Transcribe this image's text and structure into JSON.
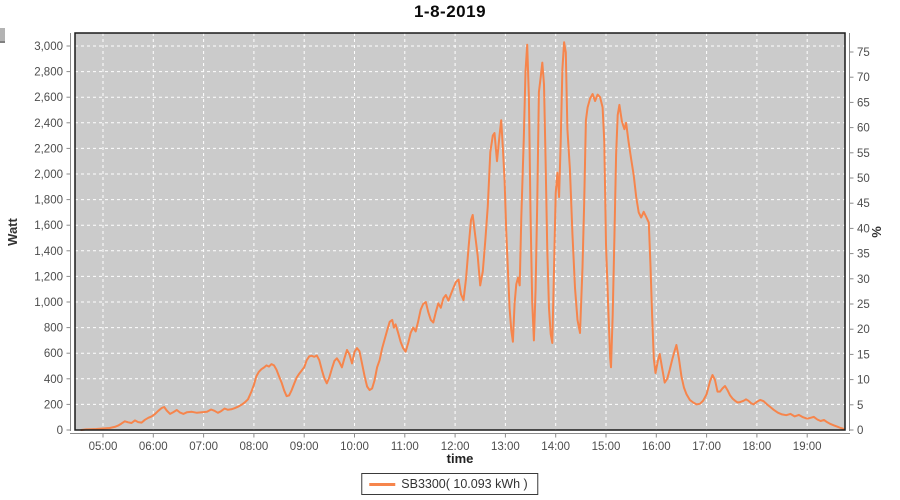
{
  "title": "1-8-2019",
  "legend": {
    "series_label": "SB3300( 10.093 kWh )"
  },
  "colors": {
    "line": "#F6854C",
    "plot_bg": "#CBCBCB",
    "grid": "#FFFFFF",
    "plot_border": "#1B1B1B",
    "axis_line": "#8A8A8A",
    "tick_label": "#4D4D4D",
    "axis_title": "#333333"
  },
  "chart_data": {
    "type": "line",
    "title": "1-8-2019",
    "xlabel": "time",
    "ylabel_left": "Watt",
    "ylabel_right": "%",
    "grid": true,
    "legend_position": "bottom-center",
    "x_ticks": [
      "05:00",
      "06:00",
      "07:00",
      "08:00",
      "09:00",
      "10:00",
      "11:00",
      "12:00",
      "13:00",
      "14:00",
      "15:00",
      "16:00",
      "17:00",
      "18:00",
      "19:00"
    ],
    "y_left": {
      "min": 0,
      "max": 3000,
      "step": 200
    },
    "y_left_ticks": [
      "0",
      "200",
      "400",
      "600",
      "800",
      "1,000",
      "1,200",
      "1,400",
      "1,600",
      "1,800",
      "2,000",
      "2,200",
      "2,400",
      "2,600",
      "2,800",
      "3,000"
    ],
    "y_right": {
      "min": 0,
      "max": 75,
      "step": 5
    },
    "y_right_ticks": [
      "0",
      "5",
      "10",
      "15",
      "20",
      "25",
      "30",
      "35",
      "40",
      "45",
      "50",
      "55",
      "60",
      "65",
      "70",
      "75"
    ],
    "series": [
      {
        "name": "SB3300",
        "energy_label": "10.093 kWh",
        "color": "#F6854C",
        "points": [
          [
            "04:34",
            0
          ],
          [
            "04:40",
            5
          ],
          [
            "04:46",
            6
          ],
          [
            "04:52",
            8
          ],
          [
            "05:00",
            12
          ],
          [
            "05:08",
            16
          ],
          [
            "05:14",
            24
          ],
          [
            "05:18",
            34
          ],
          [
            "05:22",
            50
          ],
          [
            "05:26",
            68
          ],
          [
            "05:30",
            60
          ],
          [
            "05:34",
            55
          ],
          [
            "05:38",
            75
          ],
          [
            "05:42",
            62
          ],
          [
            "05:46",
            58
          ],
          [
            "05:50",
            80
          ],
          [
            "05:54",
            95
          ],
          [
            "05:58",
            106
          ],
          [
            "06:02",
            125
          ],
          [
            "06:06",
            150
          ],
          [
            "06:10",
            172
          ],
          [
            "06:13",
            180
          ],
          [
            "06:16",
            152
          ],
          [
            "06:20",
            126
          ],
          [
            "06:24",
            140
          ],
          [
            "06:28",
            156
          ],
          [
            "06:32",
            136
          ],
          [
            "06:36",
            126
          ],
          [
            "06:40",
            138
          ],
          [
            "06:46",
            142
          ],
          [
            "06:52",
            134
          ],
          [
            "06:58",
            138
          ],
          [
            "07:04",
            142
          ],
          [
            "07:09",
            160
          ],
          [
            "07:13",
            150
          ],
          [
            "07:17",
            134
          ],
          [
            "07:21",
            148
          ],
          [
            "07:25",
            168
          ],
          [
            "07:29",
            158
          ],
          [
            "07:33",
            162
          ],
          [
            "07:37",
            170
          ],
          [
            "07:41",
            182
          ],
          [
            "07:45",
            196
          ],
          [
            "07:49",
            215
          ],
          [
            "07:53",
            240
          ],
          [
            "07:57",
            300
          ],
          [
            "08:00",
            352
          ],
          [
            "08:03",
            420
          ],
          [
            "08:06",
            455
          ],
          [
            "08:09",
            475
          ],
          [
            "08:12",
            488
          ],
          [
            "08:15",
            505
          ],
          [
            "08:18",
            495
          ],
          [
            "08:21",
            515
          ],
          [
            "08:24",
            505
          ],
          [
            "08:27",
            470
          ],
          [
            "08:30",
            420
          ],
          [
            "08:33",
            370
          ],
          [
            "08:36",
            310
          ],
          [
            "08:39",
            265
          ],
          [
            "08:42",
            270
          ],
          [
            "08:45",
            310
          ],
          [
            "08:48",
            360
          ],
          [
            "08:51",
            410
          ],
          [
            "08:54",
            440
          ],
          [
            "08:57",
            465
          ],
          [
            "09:00",
            490
          ],
          [
            "09:03",
            545
          ],
          [
            "09:06",
            575
          ],
          [
            "09:09",
            580
          ],
          [
            "09:12",
            572
          ],
          [
            "09:15",
            582
          ],
          [
            "09:18",
            545
          ],
          [
            "09:21",
            470
          ],
          [
            "09:24",
            405
          ],
          [
            "09:27",
            365
          ],
          [
            "09:30",
            410
          ],
          [
            "09:33",
            480
          ],
          [
            "09:36",
            540
          ],
          [
            "09:39",
            560
          ],
          [
            "09:42",
            530
          ],
          [
            "09:45",
            490
          ],
          [
            "09:48",
            560
          ],
          [
            "09:51",
            625
          ],
          [
            "09:54",
            590
          ],
          [
            "09:57",
            520
          ],
          [
            "10:00",
            610
          ],
          [
            "10:03",
            640
          ],
          [
            "10:06",
            615
          ],
          [
            "10:09",
            520
          ],
          [
            "10:12",
            420
          ],
          [
            "10:15",
            340
          ],
          [
            "10:18",
            312
          ],
          [
            "10:21",
            325
          ],
          [
            "10:24",
            390
          ],
          [
            "10:27",
            490
          ],
          [
            "10:30",
            545
          ],
          [
            "10:33",
            640
          ],
          [
            "10:36",
            710
          ],
          [
            "10:39",
            780
          ],
          [
            "10:42",
            845
          ],
          [
            "10:45",
            860
          ],
          [
            "10:47",
            800
          ],
          [
            "10:49",
            825
          ],
          [
            "10:52",
            760
          ],
          [
            "10:55",
            690
          ],
          [
            "10:58",
            640
          ],
          [
            "11:01",
            612
          ],
          [
            "11:04",
            680
          ],
          [
            "11:07",
            760
          ],
          [
            "11:10",
            800
          ],
          [
            "11:13",
            770
          ],
          [
            "11:16",
            850
          ],
          [
            "11:19",
            940
          ],
          [
            "11:22",
            985
          ],
          [
            "11:25",
            1000
          ],
          [
            "11:28",
            920
          ],
          [
            "11:31",
            860
          ],
          [
            "11:34",
            840
          ],
          [
            "11:37",
            920
          ],
          [
            "11:40",
            990
          ],
          [
            "11:43",
            955
          ],
          [
            "11:46",
            1030
          ],
          [
            "11:49",
            1055
          ],
          [
            "11:52",
            1010
          ],
          [
            "11:55",
            1060
          ],
          [
            "11:58",
            1110
          ],
          [
            "12:01",
            1156
          ],
          [
            "12:04",
            1175
          ],
          [
            "12:07",
            1060
          ],
          [
            "12:10",
            1015
          ],
          [
            "12:13",
            1180
          ],
          [
            "12:16",
            1420
          ],
          [
            "12:19",
            1640
          ],
          [
            "12:21",
            1680
          ],
          [
            "12:24",
            1520
          ],
          [
            "12:27",
            1360
          ],
          [
            "12:30",
            1130
          ],
          [
            "12:33",
            1240
          ],
          [
            "12:36",
            1480
          ],
          [
            "12:39",
            1750
          ],
          [
            "12:42",
            2170
          ],
          [
            "12:45",
            2300
          ],
          [
            "12:47",
            2320
          ],
          [
            "12:50",
            2100
          ],
          [
            "12:53",
            2300
          ],
          [
            "12:55",
            2420
          ],
          [
            "12:57",
            2200
          ],
          [
            "12:59",
            1950
          ],
          [
            "13:01",
            1560
          ],
          [
            "13:03",
            1250
          ],
          [
            "13:05",
            950
          ],
          [
            "13:07",
            780
          ],
          [
            "13:09",
            690
          ],
          [
            "13:11",
            990
          ],
          [
            "13:13",
            1140
          ],
          [
            "13:15",
            1190
          ],
          [
            "13:17",
            1130
          ],
          [
            "13:19",
            1660
          ],
          [
            "13:22",
            2280
          ],
          [
            "13:24",
            2800
          ],
          [
            "13:26",
            3010
          ],
          [
            "13:28",
            2600
          ],
          [
            "13:30",
            1700
          ],
          [
            "13:32",
            1000
          ],
          [
            "13:34",
            700
          ],
          [
            "13:36",
            1100
          ],
          [
            "13:38",
            1800
          ],
          [
            "13:40",
            2640
          ],
          [
            "13:42",
            2750
          ],
          [
            "13:44",
            2870
          ],
          [
            "13:46",
            2700
          ],
          [
            "13:48",
            2100
          ],
          [
            "13:50",
            1400
          ],
          [
            "13:52",
            950
          ],
          [
            "13:54",
            750
          ],
          [
            "13:56",
            680
          ],
          [
            "13:58",
            1250
          ],
          [
            "14:00",
            1850
          ],
          [
            "14:02",
            2010
          ],
          [
            "14:04",
            1820
          ],
          [
            "14:06",
            2250
          ],
          [
            "14:08",
            2820
          ],
          [
            "14:10",
            3030
          ],
          [
            "14:12",
            2950
          ],
          [
            "14:14",
            2350
          ],
          [
            "14:17",
            2040
          ],
          [
            "14:20",
            1520
          ],
          [
            "14:23",
            1110
          ],
          [
            "14:26",
            860
          ],
          [
            "14:29",
            758
          ],
          [
            "14:32",
            1270
          ],
          [
            "14:34",
            1780
          ],
          [
            "14:36",
            2420
          ],
          [
            "14:38",
            2520
          ],
          [
            "14:41",
            2590
          ],
          [
            "14:44",
            2625
          ],
          [
            "14:47",
            2570
          ],
          [
            "14:50",
            2620
          ],
          [
            "14:53",
            2600
          ],
          [
            "14:56",
            2520
          ],
          [
            "14:58",
            2250
          ],
          [
            "15:00",
            1450
          ],
          [
            "15:03",
            900
          ],
          [
            "15:05",
            560
          ],
          [
            "15:06",
            490
          ],
          [
            "15:08",
            900
          ],
          [
            "15:10",
            1500
          ],
          [
            "15:12",
            2150
          ],
          [
            "15:14",
            2460
          ],
          [
            "15:16",
            2540
          ],
          [
            "15:19",
            2410
          ],
          [
            "15:22",
            2350
          ],
          [
            "15:24",
            2400
          ],
          [
            "15:27",
            2250
          ],
          [
            "15:30",
            2120
          ],
          [
            "15:33",
            1990
          ],
          [
            "15:36",
            1820
          ],
          [
            "15:39",
            1700
          ],
          [
            "15:42",
            1660
          ],
          [
            "15:45",
            1705
          ],
          [
            "15:48",
            1665
          ],
          [
            "15:51",
            1620
          ],
          [
            "15:53",
            1300
          ],
          [
            "15:55",
            900
          ],
          [
            "15:57",
            560
          ],
          [
            "15:59",
            445
          ],
          [
            "16:02",
            545
          ],
          [
            "16:04",
            594
          ],
          [
            "16:07",
            480
          ],
          [
            "16:10",
            370
          ],
          [
            "16:13",
            400
          ],
          [
            "16:16",
            470
          ],
          [
            "16:19",
            550
          ],
          [
            "16:22",
            620
          ],
          [
            "16:24",
            664
          ],
          [
            "16:27",
            560
          ],
          [
            "16:30",
            420
          ],
          [
            "16:33",
            330
          ],
          [
            "16:36",
            280
          ],
          [
            "16:40",
            235
          ],
          [
            "16:44",
            215
          ],
          [
            "16:48",
            200
          ],
          [
            "16:52",
            205
          ],
          [
            "16:56",
            230
          ],
          [
            "17:00",
            280
          ],
          [
            "17:04",
            380
          ],
          [
            "17:07",
            430
          ],
          [
            "17:10",
            390
          ],
          [
            "17:13",
            300
          ],
          [
            "17:16",
            300
          ],
          [
            "17:19",
            325
          ],
          [
            "17:22",
            344
          ],
          [
            "17:25",
            310
          ],
          [
            "17:28",
            270
          ],
          [
            "17:31",
            245
          ],
          [
            "17:34",
            228
          ],
          [
            "17:37",
            215
          ],
          [
            "17:40",
            218
          ],
          [
            "17:44",
            228
          ],
          [
            "17:47",
            240
          ],
          [
            "17:50",
            228
          ],
          [
            "17:53",
            210
          ],
          [
            "17:56",
            200
          ],
          [
            "18:00",
            220
          ],
          [
            "18:04",
            235
          ],
          [
            "18:08",
            225
          ],
          [
            "18:12",
            200
          ],
          [
            "18:16",
            180
          ],
          [
            "18:20",
            158
          ],
          [
            "18:25",
            135
          ],
          [
            "18:30",
            122
          ],
          [
            "18:35",
            116
          ],
          [
            "18:40",
            126
          ],
          [
            "18:45",
            106
          ],
          [
            "18:50",
            118
          ],
          [
            "18:55",
            100
          ],
          [
            "19:00",
            88
          ],
          [
            "19:04",
            95
          ],
          [
            "19:08",
            102
          ],
          [
            "19:12",
            82
          ],
          [
            "19:16",
            70
          ],
          [
            "19:20",
            78
          ],
          [
            "19:24",
            60
          ],
          [
            "19:28",
            46
          ],
          [
            "19:32",
            36
          ],
          [
            "19:36",
            26
          ],
          [
            "19:40",
            16
          ],
          [
            "19:43",
            10
          ]
        ]
      }
    ]
  }
}
